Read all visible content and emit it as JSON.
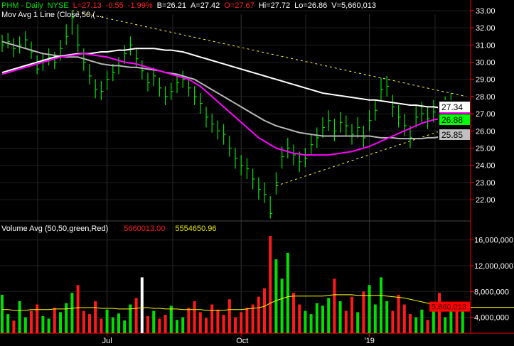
{
  "header": {
    "symbol": "PHM - Daily",
    "exchange": "NYSE",
    "last": "L=27.13",
    "change": "-0.55",
    "change_pct": "-1.99%",
    "bid": "B=26.21",
    "ask": "A=27.42",
    "open": "O=27.67",
    "high": "Hi=27.72",
    "low": "Lo=26.86",
    "volume": "V=5,660,013",
    "study": "Mov Avg 1 Line (Close,50,(  ..."
  },
  "volume_header": {
    "title": "Volume Avg (50,50,green,Red)",
    "value": "5660013.00",
    "avg": "5554650.96"
  },
  "colors": {
    "up": "#00e000",
    "down": "#ff1a1a",
    "ma50": "#ff00ff",
    "ma_white": "#ffffff",
    "ma_gray": "#b8b8b8",
    "trend": "#ffff33",
    "axis": "#ff0000",
    "vol_avg": "#ffff00"
  },
  "chart_data": [
    {
      "type": "ohlc",
      "panel": "price",
      "ylim": [
        21,
        33.6
      ],
      "yticks": [
        "33.00",
        "32.00",
        "31.00",
        "30.00",
        "29.00",
        "28.00",
        "27.00",
        "26.00",
        "25.00",
        "24.00",
        "23.00",
        "22.00"
      ],
      "xticks": [
        {
          "label": "Jul",
          "bar": 18
        },
        {
          "label": "Oct",
          "bar": 41
        },
        {
          "label": "'19",
          "bar": 63
        }
      ],
      "bars_hlc": [
        [
          31.6,
          30.6,
          31.0
        ],
        [
          31.7,
          30.8,
          31.2
        ],
        [
          31.4,
          30.3,
          30.8
        ],
        [
          31.5,
          30.5,
          31.0
        ],
        [
          31.8,
          30.8,
          31.3
        ],
        [
          31.2,
          30.2,
          30.6
        ],
        [
          30.4,
          29.3,
          29.6
        ],
        [
          30.5,
          29.5,
          30.0
        ],
        [
          30.8,
          29.8,
          30.3
        ],
        [
          30.6,
          29.6,
          30.0
        ],
        [
          31.3,
          30.1,
          30.8
        ],
        [
          32.2,
          31.0,
          31.5
        ],
        [
          33.0,
          31.6,
          32.6
        ],
        [
          32.2,
          30.6,
          31.0
        ],
        [
          30.8,
          29.5,
          30.0
        ],
        [
          29.9,
          28.7,
          29.2
        ],
        [
          29.0,
          27.9,
          28.4
        ],
        [
          28.9,
          27.8,
          28.3
        ],
        [
          29.5,
          28.4,
          29.0
        ],
        [
          29.9,
          28.9,
          29.4
        ],
        [
          30.3,
          29.3,
          29.8
        ],
        [
          31.0,
          29.9,
          30.5
        ],
        [
          31.5,
          30.4,
          31.0
        ],
        [
          30.8,
          29.7,
          30.2
        ],
        [
          30.1,
          29.0,
          29.5
        ],
        [
          29.4,
          28.3,
          28.8
        ],
        [
          29.7,
          28.6,
          29.2
        ],
        [
          29.1,
          28.0,
          28.5
        ],
        [
          28.6,
          27.5,
          28.0
        ],
        [
          28.8,
          27.8,
          28.3
        ],
        [
          29.3,
          28.2,
          28.8
        ],
        [
          29.5,
          28.5,
          29.0
        ],
        [
          29.1,
          28.0,
          28.5
        ],
        [
          28.6,
          27.5,
          28.0
        ],
        [
          28.2,
          27.0,
          27.6
        ],
        [
          27.4,
          26.2,
          26.8
        ],
        [
          27.0,
          25.9,
          26.4
        ],
        [
          26.6,
          25.5,
          26.0
        ],
        [
          26.4,
          25.2,
          25.8
        ],
        [
          25.7,
          24.5,
          25.0
        ],
        [
          25.0,
          23.8,
          24.4
        ],
        [
          24.6,
          23.4,
          24.0
        ],
        [
          24.4,
          23.2,
          23.8
        ],
        [
          23.8,
          22.6,
          23.2
        ],
        [
          23.3,
          22.0,
          22.6
        ],
        [
          23.0,
          21.8,
          22.3
        ],
        [
          22.2,
          20.9,
          21.2
        ],
        [
          23.6,
          22.3,
          23.0
        ],
        [
          25.1,
          23.8,
          24.5
        ],
        [
          25.6,
          24.4,
          25.0
        ],
        [
          25.2,
          24.0,
          24.6
        ],
        [
          24.8,
          23.6,
          24.2
        ],
        [
          25.0,
          23.9,
          24.4
        ],
        [
          25.8,
          24.6,
          25.2
        ],
        [
          26.2,
          25.0,
          25.6
        ],
        [
          26.8,
          25.6,
          26.2
        ],
        [
          27.2,
          26.0,
          26.6
        ],
        [
          26.7,
          25.4,
          26.0
        ],
        [
          27.1,
          25.9,
          26.5
        ],
        [
          26.9,
          25.7,
          26.3
        ],
        [
          26.4,
          25.2,
          25.8
        ],
        [
          26.8,
          25.6,
          26.2
        ],
        [
          26.3,
          25.0,
          25.6
        ],
        [
          27.2,
          26.0,
          26.6
        ],
        [
          27.8,
          26.6,
          27.2
        ],
        [
          29.1,
          27.8,
          28.4
        ],
        [
          29.2,
          28.0,
          28.6
        ],
        [
          28.1,
          26.8,
          27.4
        ],
        [
          27.5,
          26.2,
          26.8
        ],
        [
          27.0,
          25.7,
          26.3
        ],
        [
          26.3,
          25.0,
          25.6
        ],
        [
          27.5,
          26.2,
          26.8
        ],
        [
          27.7,
          26.4,
          27.0
        ],
        [
          27.4,
          26.1,
          26.7
        ],
        [
          27.8,
          26.5,
          27.1
        ],
        [
          27.5,
          26.3,
          26.9
        ],
        [
          28.0,
          26.7,
          27.3
        ],
        [
          28.2,
          27.0,
          27.6
        ],
        [
          27.6,
          26.4,
          27.0
        ],
        [
          27.72,
          26.86,
          27.13
        ]
      ],
      "ma_white": [
        29.4,
        29.5,
        29.6,
        29.7,
        29.8,
        29.9,
        30.0,
        30.1,
        30.2,
        30.3,
        30.35,
        30.4,
        30.45,
        30.5,
        30.5,
        30.5,
        30.55,
        30.6,
        30.6,
        30.65,
        30.7,
        30.7,
        30.75,
        30.8,
        30.8,
        30.8,
        30.8,
        30.75,
        30.7,
        30.7,
        30.65,
        30.6,
        30.5,
        30.4,
        30.3,
        30.2,
        30.1,
        30.0,
        29.9,
        29.8,
        29.7,
        29.6,
        29.5,
        29.4,
        29.3,
        29.2,
        29.1,
        29.0,
        28.9,
        28.8,
        28.7,
        28.6,
        28.5,
        28.4,
        28.3,
        28.2,
        28.15,
        28.1,
        28.05,
        28.0,
        27.95,
        27.9,
        27.85,
        27.8,
        27.8,
        27.75,
        27.7,
        27.65,
        27.6,
        27.55,
        27.5,
        27.5,
        27.45,
        27.4,
        27.4,
        27.35,
        27.35,
        27.34,
        27.34,
        27.34
      ],
      "ma_gray": [
        31.2,
        31.1,
        31.0,
        30.9,
        30.8,
        30.7,
        30.6,
        30.5,
        30.45,
        30.4,
        30.35,
        30.3,
        30.3,
        30.3,
        30.2,
        30.1,
        30.0,
        29.9,
        29.85,
        29.8,
        29.8,
        29.75,
        29.7,
        29.7,
        29.65,
        29.6,
        29.55,
        29.5,
        29.4,
        29.35,
        29.3,
        29.2,
        29.1,
        29.0,
        28.8,
        28.6,
        28.4,
        28.2,
        28.0,
        27.8,
        27.6,
        27.4,
        27.2,
        27.0,
        26.8,
        26.6,
        26.45,
        26.3,
        26.2,
        26.1,
        26.0,
        25.9,
        25.85,
        25.8,
        25.75,
        25.7,
        25.7,
        25.7,
        25.7,
        25.7,
        25.7,
        25.7,
        25.7,
        25.7,
        25.65,
        25.6,
        25.6,
        25.6,
        25.55,
        25.55,
        25.55,
        25.55,
        25.55,
        25.6,
        25.6,
        25.65,
        25.7,
        25.75,
        25.8,
        25.85
      ],
      "ma50": [
        29.3,
        29.4,
        29.5,
        29.6,
        29.7,
        29.8,
        29.9,
        30.0,
        30.1,
        30.2,
        30.3,
        30.35,
        30.4,
        30.45,
        30.5,
        30.45,
        30.4,
        30.35,
        30.3,
        30.2,
        30.1,
        30.0,
        29.95,
        29.9,
        29.8,
        29.7,
        29.6,
        29.5,
        29.4,
        29.3,
        29.2,
        29.1,
        29.0,
        28.8,
        28.6,
        28.3,
        28.0,
        27.7,
        27.4,
        27.1,
        26.8,
        26.5,
        26.2,
        25.9,
        25.6,
        25.4,
        25.2,
        25.0,
        24.9,
        24.8,
        24.7,
        24.65,
        24.6,
        24.6,
        24.6,
        24.6,
        24.6,
        24.65,
        24.7,
        24.75,
        24.8,
        24.9,
        25.0,
        25.1,
        25.25,
        25.4,
        25.55,
        25.7,
        25.85,
        26.0,
        26.15,
        26.3,
        26.45,
        26.55,
        26.65,
        26.7,
        26.75,
        26.8,
        26.85,
        26.88
      ],
      "trendlines": [
        {
          "from": {
            "bar": 12,
            "price": 33.0
          },
          "to": {
            "bar": 80,
            "price": 28.0
          }
        },
        {
          "from": {
            "bar": 47,
            "price": 22.8
          },
          "to": {
            "bar": 80,
            "price": 26.5
          }
        }
      ],
      "last_labels": [
        {
          "text": "27.34",
          "color": "#ffffff"
        },
        {
          "text": "26.88",
          "color": "#00ff00"
        },
        {
          "text": "25.85",
          "color": "#c0c0c0"
        }
      ]
    },
    {
      "type": "bar",
      "panel": "volume",
      "ylim": [
        0,
        18.5
      ],
      "unit": "millions",
      "yticks": [
        "16,000,000",
        "12,000,000",
        "8,000,000",
        "4,000,000"
      ],
      "yticks_values": [
        16,
        12,
        8,
        4
      ],
      "values": [
        7.5,
        4.5,
        3.5,
        6.5,
        4.0,
        5.0,
        6.0,
        4.2,
        3.8,
        5.5,
        4.8,
        6.2,
        7.8,
        9.0,
        5.0,
        4.5,
        6.5,
        3.8,
        5.2,
        4.0,
        4.6,
        3.5,
        6.0,
        7.0,
        10.2,
        4.2,
        5.0,
        3.8,
        4.4,
        5.8,
        3.6,
        4.0,
        5.5,
        6.5,
        4.8,
        3.9,
        6.0,
        5.2,
        4.4,
        6.8,
        4.0,
        4.8,
        5.5,
        6.0,
        7.2,
        8.5,
        17.0,
        13.0,
        10.0,
        14.0,
        7.8,
        6.0,
        5.0,
        4.5,
        6.2,
        5.8,
        7.0,
        10.0,
        6.5,
        5.0,
        7.2,
        4.8,
        8.0,
        9.0,
        6.0,
        10.2,
        6.5,
        5.0,
        7.5,
        6.0,
        4.5,
        4.0,
        5.2,
        3.6,
        6.0,
        7.8,
        4.0,
        5.5,
        6.0,
        5.66
      ],
      "avg": [
        5.2,
        5.2,
        5.1,
        5.1,
        5.1,
        5.2,
        5.2,
        5.2,
        5.2,
        5.3,
        5.3,
        5.3,
        5.4,
        5.5,
        5.5,
        5.5,
        5.5,
        5.4,
        5.4,
        5.4,
        5.3,
        5.3,
        5.3,
        5.4,
        5.5,
        5.5,
        5.4,
        5.4,
        5.3,
        5.3,
        5.3,
        5.2,
        5.2,
        5.2,
        5.2,
        5.1,
        5.1,
        5.1,
        5.1,
        5.2,
        5.2,
        5.2,
        5.3,
        5.4,
        5.5,
        5.7,
        6.2,
        6.6,
        6.9,
        7.2,
        7.3,
        7.3,
        7.3,
        7.3,
        7.3,
        7.3,
        7.4,
        7.5,
        7.5,
        7.5,
        7.5,
        7.4,
        7.4,
        7.4,
        7.4,
        7.4,
        7.3,
        7.2,
        7.1,
        7.0,
        6.8,
        6.6,
        6.4,
        6.2,
        6.0,
        5.9,
        5.8,
        5.7,
        5.6,
        5.55
      ],
      "last_label": {
        "text": "5,660,013",
        "color": "#ff0000"
      }
    }
  ]
}
